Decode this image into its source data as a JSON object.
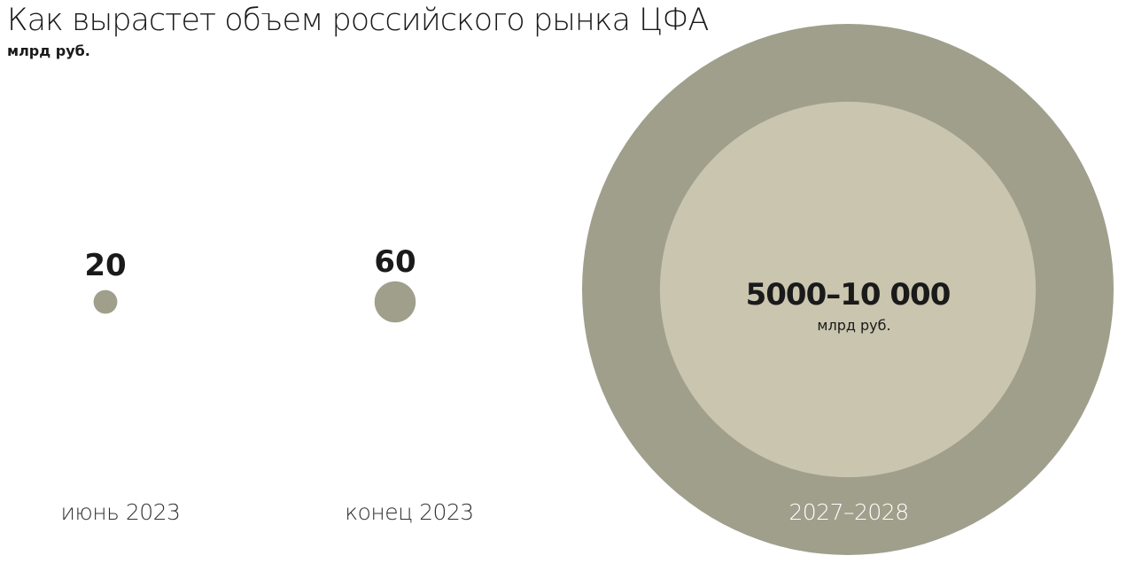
{
  "chart_data": {
    "type": "bubble",
    "title": "Как вырастет объем российского рынка ЦФА",
    "subtitle": "млрд руб.",
    "categories": [
      "июнь 2023",
      "конец 2023",
      "2027–2028"
    ],
    "series": [
      {
        "values": [
          20,
          60,
          5000
        ],
        "value_labels": [
          "20",
          "60",
          "5000–10 000"
        ]
      }
    ],
    "range_upper": [
      null,
      null,
      10000
    ],
    "big_value_unit": "млрд руб.",
    "colors": {
      "bubble": "#a09f8c",
      "range_inner": "#c9c5ae",
      "text": "#1a1a1a",
      "period_text": "#333333",
      "period_text_inverse": "#ffffff",
      "background": "#ffffff"
    }
  }
}
